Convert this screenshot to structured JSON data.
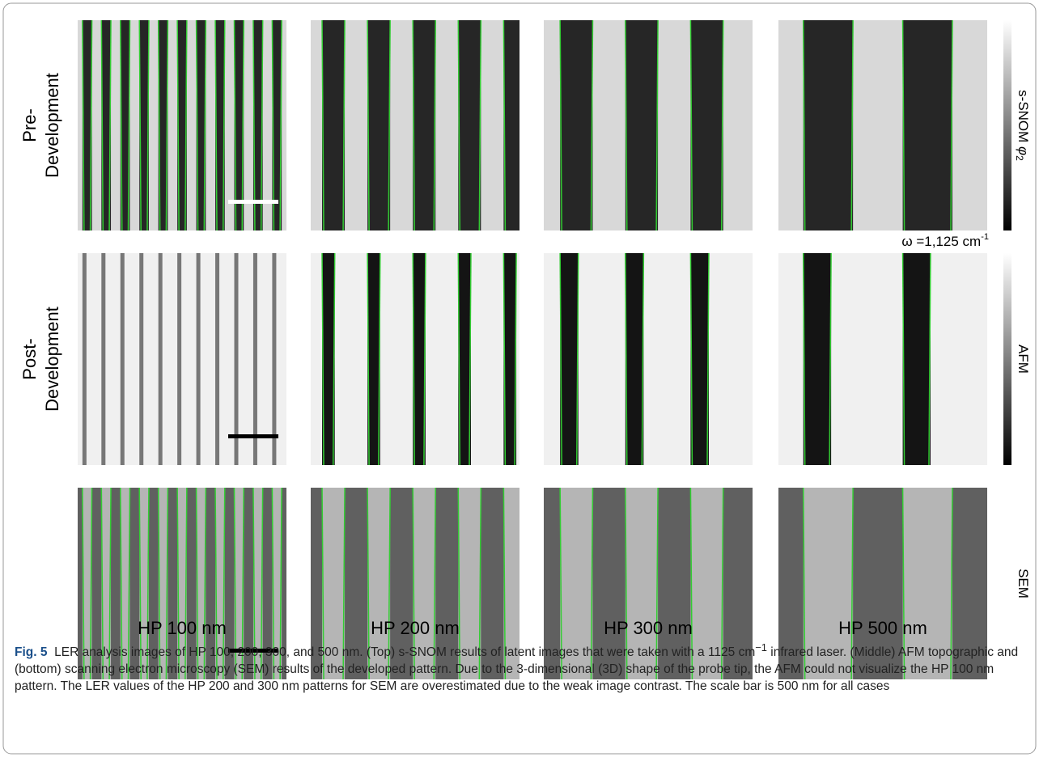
{
  "figure": {
    "rows": [
      {
        "label_lines": [
          "Pre-",
          "Development"
        ],
        "colorbar_label": "s-SNOM ",
        "colorbar_symbol": "φ",
        "colorbar_subscript": "2"
      },
      {
        "label_lines": [
          "Post-",
          "Development"
        ],
        "colorbar_label": "AFM"
      },
      {
        "colorbar_label": "SEM"
      }
    ],
    "wavenumber_label": "ω =1,125 cm",
    "wavenumber_superscript": "-1",
    "columns": [
      "HP 100 nm",
      "HP 200 nm",
      "HP 300 nm",
      "HP 500 nm"
    ],
    "caption": {
      "label": "Fig. 5",
      "text_before": "LER analysis images of HP 100, 200, 300, and 500 nm. (Top) s-SNOM results of latent images that were taken with a 1125 cm",
      "superscript": "−1",
      "text_after": " infrared laser. (Middle) AFM topographic and (bottom) scanning electron microscopy (SEM) results of the developed pattern. Due to the 3-dimensional (3D) shape of the probe tip, the AFM could not visualize the HP 100 nm pattern. The LER values of the HP 200 and 300 nm patterns for SEM are overestimated due to the weak image contrast. The scale bar is 500 nm for all cases"
    }
  }
}
